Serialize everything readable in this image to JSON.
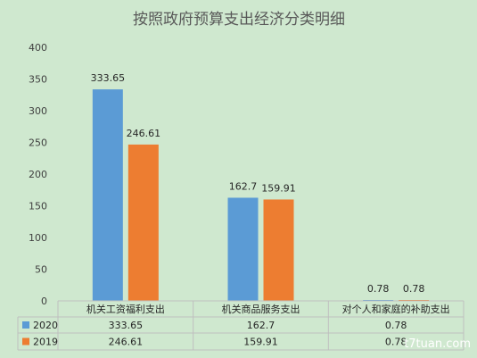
{
  "chart_data": {
    "type": "bar",
    "title": "按照政府预算支出经济分类明细",
    "categories": [
      "机关工资福利支出",
      "机关商品服务支出",
      "对个人和家庭的补助支出"
    ],
    "series": [
      {
        "name": "2020",
        "values": [
          333.65,
          162.7,
          0.78
        ],
        "labels": [
          "333.65",
          "162.7",
          "0.78"
        ],
        "color": "#5b9bd5"
      },
      {
        "name": "2019",
        "values": [
          246.61,
          159.91,
          0.78
        ],
        "labels": [
          "246.61",
          "159.91",
          "0.78"
        ],
        "color": "#ed7d31"
      }
    ],
    "ylim": [
      0,
      400
    ],
    "yticks": [
      "0",
      "50",
      "100",
      "150",
      "200",
      "250",
      "300",
      "350",
      "400"
    ],
    "grid": false,
    "legend": "data table below chart"
  },
  "watermark": "t7tuan.com",
  "colors": {
    "background": "#cfe8cf"
  }
}
